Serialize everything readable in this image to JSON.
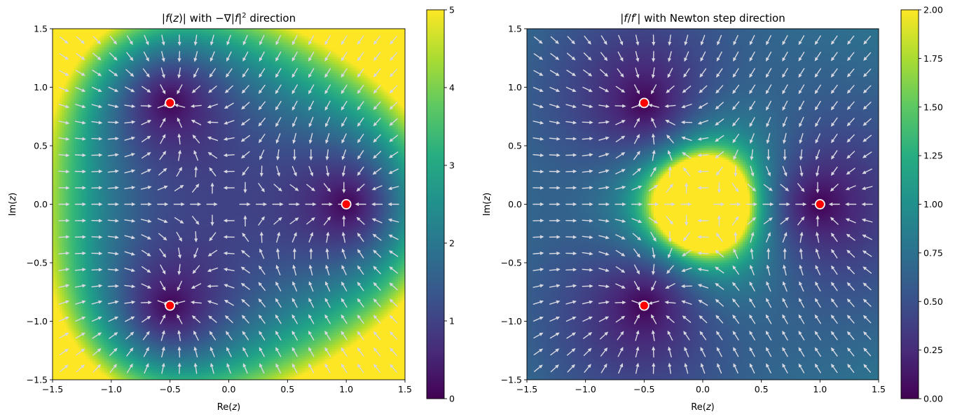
{
  "chart_data": [
    {
      "type": "heatmap",
      "title": "|f(z)| with −∇|f|² direction",
      "title_parts": {
        "a": "|",
        "b": "f",
        "c": "(",
        "d": "z",
        "e": ")| with −∇|",
        "f": "f",
        "g": "|",
        "sup": "2",
        "h": " direction"
      },
      "xlabel": "Re(z)",
      "ylabel": "Im(z)",
      "xlabel_parts": {
        "pre": "Re(",
        "var": "z",
        "post": ")"
      },
      "ylabel_parts": {
        "pre": "Im(",
        "var": "z",
        "post": ")"
      },
      "field": "abs_f",
      "function": "f(z) = z^3 - 1",
      "colormap": "viridis",
      "xlim": [
        -1.5,
        1.5
      ],
      "ylim": [
        -1.5,
        1.5
      ],
      "xticks": [
        -1.5,
        -1.0,
        -0.5,
        0.0,
        0.5,
        1.0,
        1.5
      ],
      "yticks": [
        -1.5,
        -1.0,
        -0.5,
        0.0,
        0.5,
        1.0,
        1.5
      ],
      "xtick_labels": [
        "−1.5",
        "−1.0",
        "−0.5",
        "0.0",
        "0.5",
        "1.0",
        "1.5"
      ],
      "ytick_labels": [
        "−1.5",
        "−1.0",
        "−0.5",
        "0.0",
        "0.5",
        "1.0",
        "1.5"
      ],
      "colorbar": {
        "range": [
          0,
          5
        ],
        "ticks": [
          0,
          1,
          2,
          3,
          4,
          5
        ],
        "tick_labels": [
          "0",
          "1",
          "2",
          "3",
          "4",
          "5"
        ]
      },
      "quiver": {
        "direction": "negative gradient of |f|^2",
        "grid": 21,
        "range": [
          -1.4,
          1.4
        ],
        "color": "#d8d8e0"
      },
      "roots": [
        {
          "x": 1.0,
          "y": 0.0
        },
        {
          "x": -0.5,
          "y": 0.866
        },
        {
          "x": -0.5,
          "y": -0.866
        }
      ],
      "root_marker": {
        "fill": "#ff0000",
        "edge": "#ffffff"
      }
    },
    {
      "type": "heatmap",
      "title": "|f/f′| with Newton step direction",
      "title_parts": {
        "a": "|",
        "b": "f",
        "c": "/",
        "d": "f",
        "e": "′",
        "f": "| with Newton step direction"
      },
      "xlabel": "Re(z)",
      "ylabel": "Im(z)",
      "xlabel_parts": {
        "pre": "Re(",
        "var": "z",
        "post": ")"
      },
      "ylabel_parts": {
        "pre": "Im(",
        "var": "z",
        "post": ")"
      },
      "field": "abs_f_over_fprime",
      "function": "f(z) = z^3 - 1",
      "colormap": "viridis",
      "xlim": [
        -1.5,
        1.5
      ],
      "ylim": [
        -1.5,
        1.5
      ],
      "xticks": [
        -1.5,
        -1.0,
        -0.5,
        0.0,
        0.5,
        1.0,
        1.5
      ],
      "yticks": [
        -1.5,
        -1.0,
        -0.5,
        0.0,
        0.5,
        1.0,
        1.5
      ],
      "xtick_labels": [
        "−1.5",
        "−1.0",
        "−0.5",
        "0.0",
        "0.5",
        "1.0",
        "1.5"
      ],
      "ytick_labels": [
        "−1.5",
        "−1.0",
        "−0.5",
        "0.0",
        "0.5",
        "1.0",
        "1.5"
      ],
      "colorbar": {
        "range": [
          0,
          2
        ],
        "ticks": [
          0,
          0.25,
          0.5,
          0.75,
          1.0,
          1.25,
          1.5,
          1.75,
          2.0
        ],
        "tick_labels": [
          "0.00",
          "0.25",
          "0.50",
          "0.75",
          "1.00",
          "1.25",
          "1.50",
          "1.75",
          "2.00"
        ]
      },
      "quiver": {
        "direction": "Newton step -f/f'",
        "grid": 21,
        "range": [
          -1.4,
          1.4
        ],
        "color": "#d8d8e0"
      },
      "roots": [
        {
          "x": 1.0,
          "y": 0.0
        },
        {
          "x": -0.5,
          "y": 0.866
        },
        {
          "x": -0.5,
          "y": -0.866
        }
      ],
      "root_marker": {
        "fill": "#ff0000",
        "edge": "#ffffff"
      }
    }
  ]
}
